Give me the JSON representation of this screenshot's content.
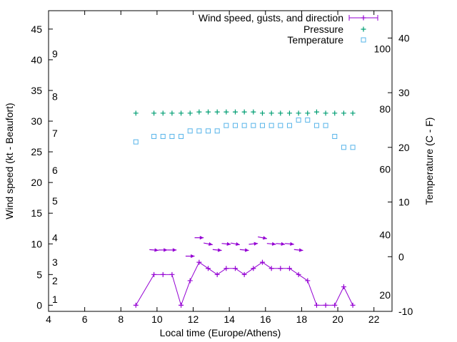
{
  "chart_data": {
    "type": "line",
    "xlabel": "Local time (Europe/Athens)",
    "ylabel": "Wind speed (kt - Beaufort)",
    "y2label": "Temperature (C - F)",
    "xlim": [
      4,
      23
    ],
    "ylim": [
      -1,
      48
    ],
    "y2lim": [
      -10,
      45
    ],
    "x_ticks": [
      "4",
      "6",
      "8",
      "10",
      "12",
      "14",
      "16",
      "18",
      "20",
      "22"
    ],
    "y_ticks": [
      "0",
      "5",
      "10",
      "15",
      "20",
      "25",
      "30",
      "35",
      "40",
      "45"
    ],
    "y2_ticks": [
      "-10",
      "0",
      "10",
      "20",
      "30",
      "40"
    ],
    "beaufort_labels": [
      {
        "text": "1",
        "y": 1
      },
      {
        "text": "2",
        "y": 4
      },
      {
        "text": "3",
        "y": 7
      },
      {
        "text": "4",
        "y": 11
      },
      {
        "text": "5",
        "y": 17
      },
      {
        "text": "6",
        "y": 22
      },
      {
        "text": "7",
        "y": 28
      },
      {
        "text": "8",
        "y": 34
      },
      {
        "text": "9",
        "y": 41
      }
    ],
    "fahrenheit_labels": [
      {
        "text": "20",
        "y2": -7
      },
      {
        "text": "40",
        "y2": 4
      },
      {
        "text": "60",
        "y2": 16
      },
      {
        "text": "80",
        "y2": 27
      },
      {
        "text": "100",
        "y2": 38
      }
    ],
    "legend": [
      {
        "label": "Wind speed, gusts, and direction",
        "color": "#9400d3",
        "marker": "line-plus"
      },
      {
        "label": "Pressure",
        "color": "#009e73",
        "marker": "plus"
      },
      {
        "label": "Temperature",
        "color": "#56b4e9",
        "marker": "square"
      }
    ],
    "legend_position": "top-right",
    "grid": false,
    "series": [
      {
        "name": "Wind speed, gusts, and direction",
        "axis": "y",
        "x": [
          8.83,
          9.83,
          10.33,
          10.83,
          11.33,
          11.83,
          12.33,
          12.83,
          13.33,
          13.83,
          14.33,
          14.83,
          15.33,
          15.83,
          16.33,
          16.83,
          17.33,
          17.83,
          18.33,
          18.83,
          19.33,
          19.83,
          20.33,
          20.83
        ],
        "values": [
          0,
          5,
          5,
          5,
          0,
          4,
          7,
          6,
          5,
          6,
          6,
          5,
          6,
          7,
          6,
          6,
          6,
          5,
          4,
          0,
          0,
          0,
          3,
          0
        ]
      },
      {
        "name": "Pressure",
        "axis": "y",
        "x": [
          8.83,
          9.83,
          10.33,
          10.83,
          11.33,
          11.83,
          12.33,
          12.83,
          13.33,
          13.83,
          14.33,
          14.83,
          15.33,
          15.83,
          16.33,
          16.83,
          17.33,
          17.83,
          18.33,
          18.83,
          19.33,
          19.83,
          20.33,
          20.83
        ],
        "values": [
          31.3,
          31.3,
          31.3,
          31.3,
          31.3,
          31.3,
          31.5,
          31.5,
          31.5,
          31.5,
          31.5,
          31.5,
          31.5,
          31.3,
          31.3,
          31.3,
          31.3,
          31.3,
          31.3,
          31.5,
          31.3,
          31.3,
          31.3,
          31.3
        ]
      },
      {
        "name": "Temperature",
        "axis": "y2",
        "x": [
          8.83,
          9.83,
          10.33,
          10.83,
          11.33,
          11.83,
          12.33,
          12.83,
          13.33,
          13.83,
          14.33,
          14.83,
          15.33,
          15.83,
          16.33,
          16.83,
          17.33,
          17.83,
          18.33,
          18.83,
          19.33,
          19.83,
          20.33,
          20.83
        ],
        "values": [
          21,
          22,
          22,
          22,
          22,
          23,
          23,
          23,
          23,
          24,
          24,
          24,
          24,
          24,
          24,
          24,
          24,
          25,
          25,
          24,
          24,
          22,
          20,
          20
        ]
      }
    ],
    "wind_direction_arrows": [
      {
        "x": 9.83,
        "y": 9,
        "dx": 0.5,
        "dy": 0.12
      },
      {
        "x": 10.33,
        "y": 9,
        "dx": 0.5,
        "dy": 0
      },
      {
        "x": 10.83,
        "y": 9,
        "dx": 0.5,
        "dy": 0
      },
      {
        "x": 11.83,
        "y": 8,
        "dx": 0.5,
        "dy": 0
      },
      {
        "x": 12.33,
        "y": 11,
        "dx": 0.5,
        "dy": 0
      },
      {
        "x": 12.83,
        "y": 10,
        "dx": 0.5,
        "dy": 0.28
      },
      {
        "x": 13.33,
        "y": 9,
        "dx": 0.5,
        "dy": 0.14
      },
      {
        "x": 13.83,
        "y": 10,
        "dx": 0.5,
        "dy": 0.14
      },
      {
        "x": 14.33,
        "y": 10,
        "dx": 0.5,
        "dy": 0.28
      },
      {
        "x": 14.83,
        "y": 9,
        "dx": 0.5,
        "dy": 0.14
      },
      {
        "x": 15.33,
        "y": 10,
        "dx": 0.5,
        "dy": -0.14
      },
      {
        "x": 15.83,
        "y": 11,
        "dx": 0.5,
        "dy": 0.28
      },
      {
        "x": 16.33,
        "y": 10,
        "dx": 0.5,
        "dy": 0.14
      },
      {
        "x": 16.83,
        "y": 10,
        "dx": 0.5,
        "dy": 0.14
      },
      {
        "x": 17.33,
        "y": 10,
        "dx": 0.5,
        "dy": 0.14
      },
      {
        "x": 17.83,
        "y": 9,
        "dx": 0.5,
        "dy": 0.14
      }
    ]
  }
}
